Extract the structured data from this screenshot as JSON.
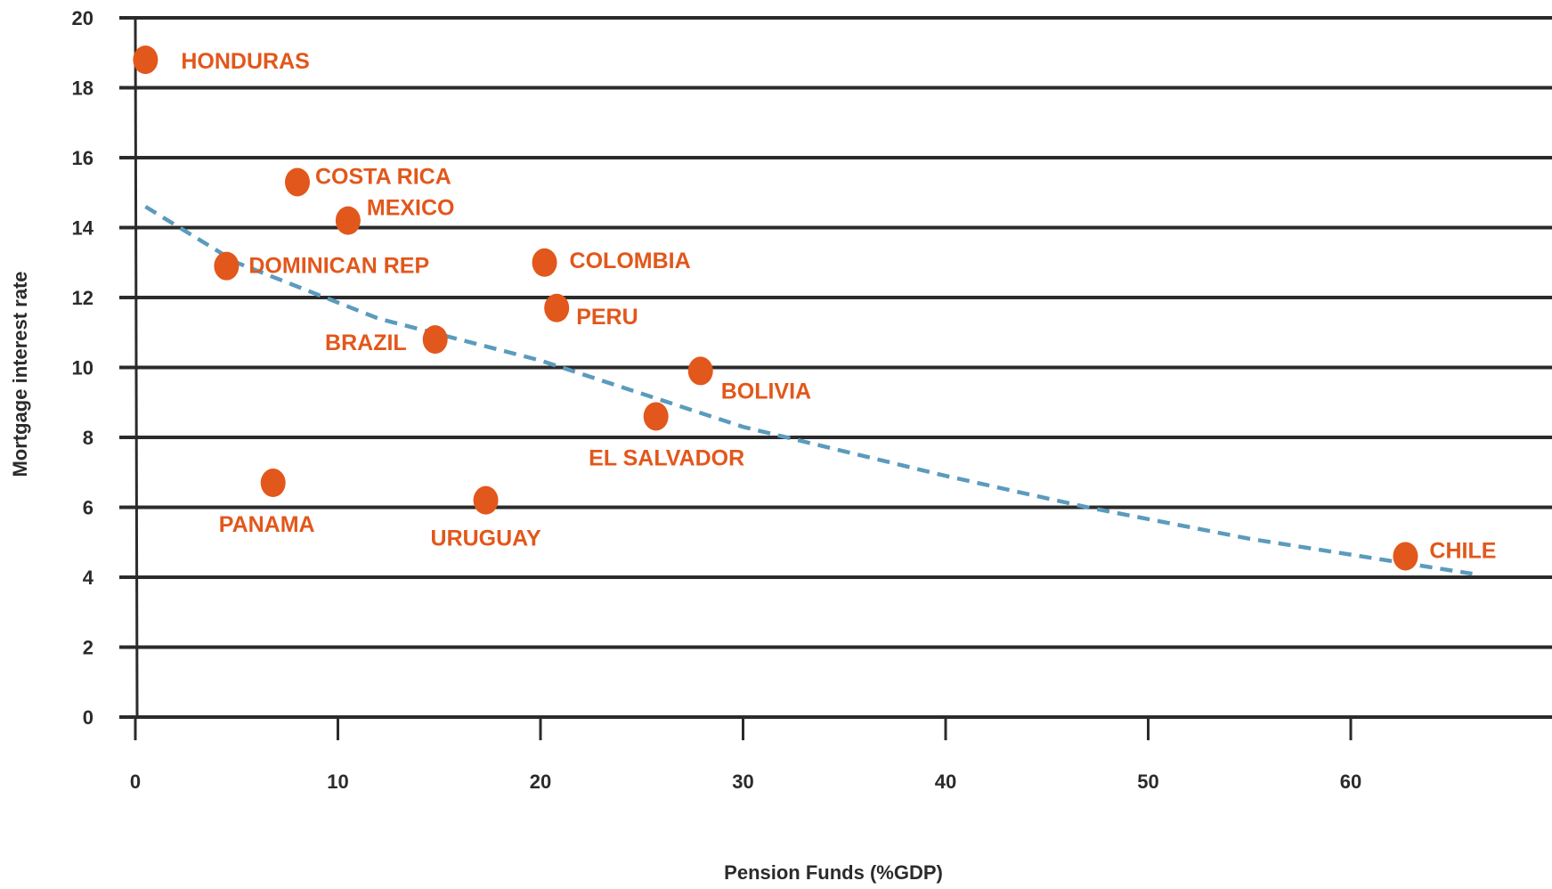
{
  "chart_data": {
    "type": "scatter",
    "title": "",
    "xlabel": "Pension Funds (%GDP)",
    "ylabel": "Mortgage interest rate",
    "xlim": [
      0,
      70
    ],
    "ylim": [
      0,
      20
    ],
    "x_ticks": [
      "0",
      "10",
      "20",
      "30",
      "40",
      "50",
      "60"
    ],
    "y_ticks": [
      "0",
      "2",
      "4",
      "6",
      "8",
      "10",
      "12",
      "14",
      "16",
      "18",
      "20"
    ],
    "grid": "horizontal",
    "legend": "none",
    "point_color": "#e2571b",
    "trend_color": "#5b9bbd",
    "axis_color": "#2b2b2b",
    "points": [
      {
        "label": "HONDURAS",
        "x": 0.5,
        "y": 18.8
      },
      {
        "label": "COSTA RICA",
        "x": 8.0,
        "y": 15.3
      },
      {
        "label": "MEXICO",
        "x": 10.5,
        "y": 14.2
      },
      {
        "label": "DOMINICAN REP",
        "x": 4.5,
        "y": 12.9
      },
      {
        "label": "COLOMBIA",
        "x": 20.2,
        "y": 13.0
      },
      {
        "label": "PERU",
        "x": 20.8,
        "y": 11.7
      },
      {
        "label": "BRAZIL",
        "x": 14.8,
        "y": 10.8
      },
      {
        "label": "BOLIVIA",
        "x": 27.9,
        "y": 9.9
      },
      {
        "label": "EL SALVADOR",
        "x": 25.7,
        "y": 8.6
      },
      {
        "label": "PANAMA",
        "x": 6.8,
        "y": 6.7
      },
      {
        "label": "URUGUAY",
        "x": 17.3,
        "y": 6.2
      },
      {
        "label": "CHILE",
        "x": 62.7,
        "y": 4.6
      }
    ],
    "trendline": {
      "style": "dashed",
      "points": [
        [
          0.5,
          14.6
        ],
        [
          5,
          13.0
        ],
        [
          12,
          11.4
        ],
        [
          20,
          10.2
        ],
        [
          30,
          8.3
        ],
        [
          40,
          6.9
        ],
        [
          47,
          6.0
        ],
        [
          55,
          5.1
        ],
        [
          66,
          4.1
        ]
      ]
    }
  }
}
